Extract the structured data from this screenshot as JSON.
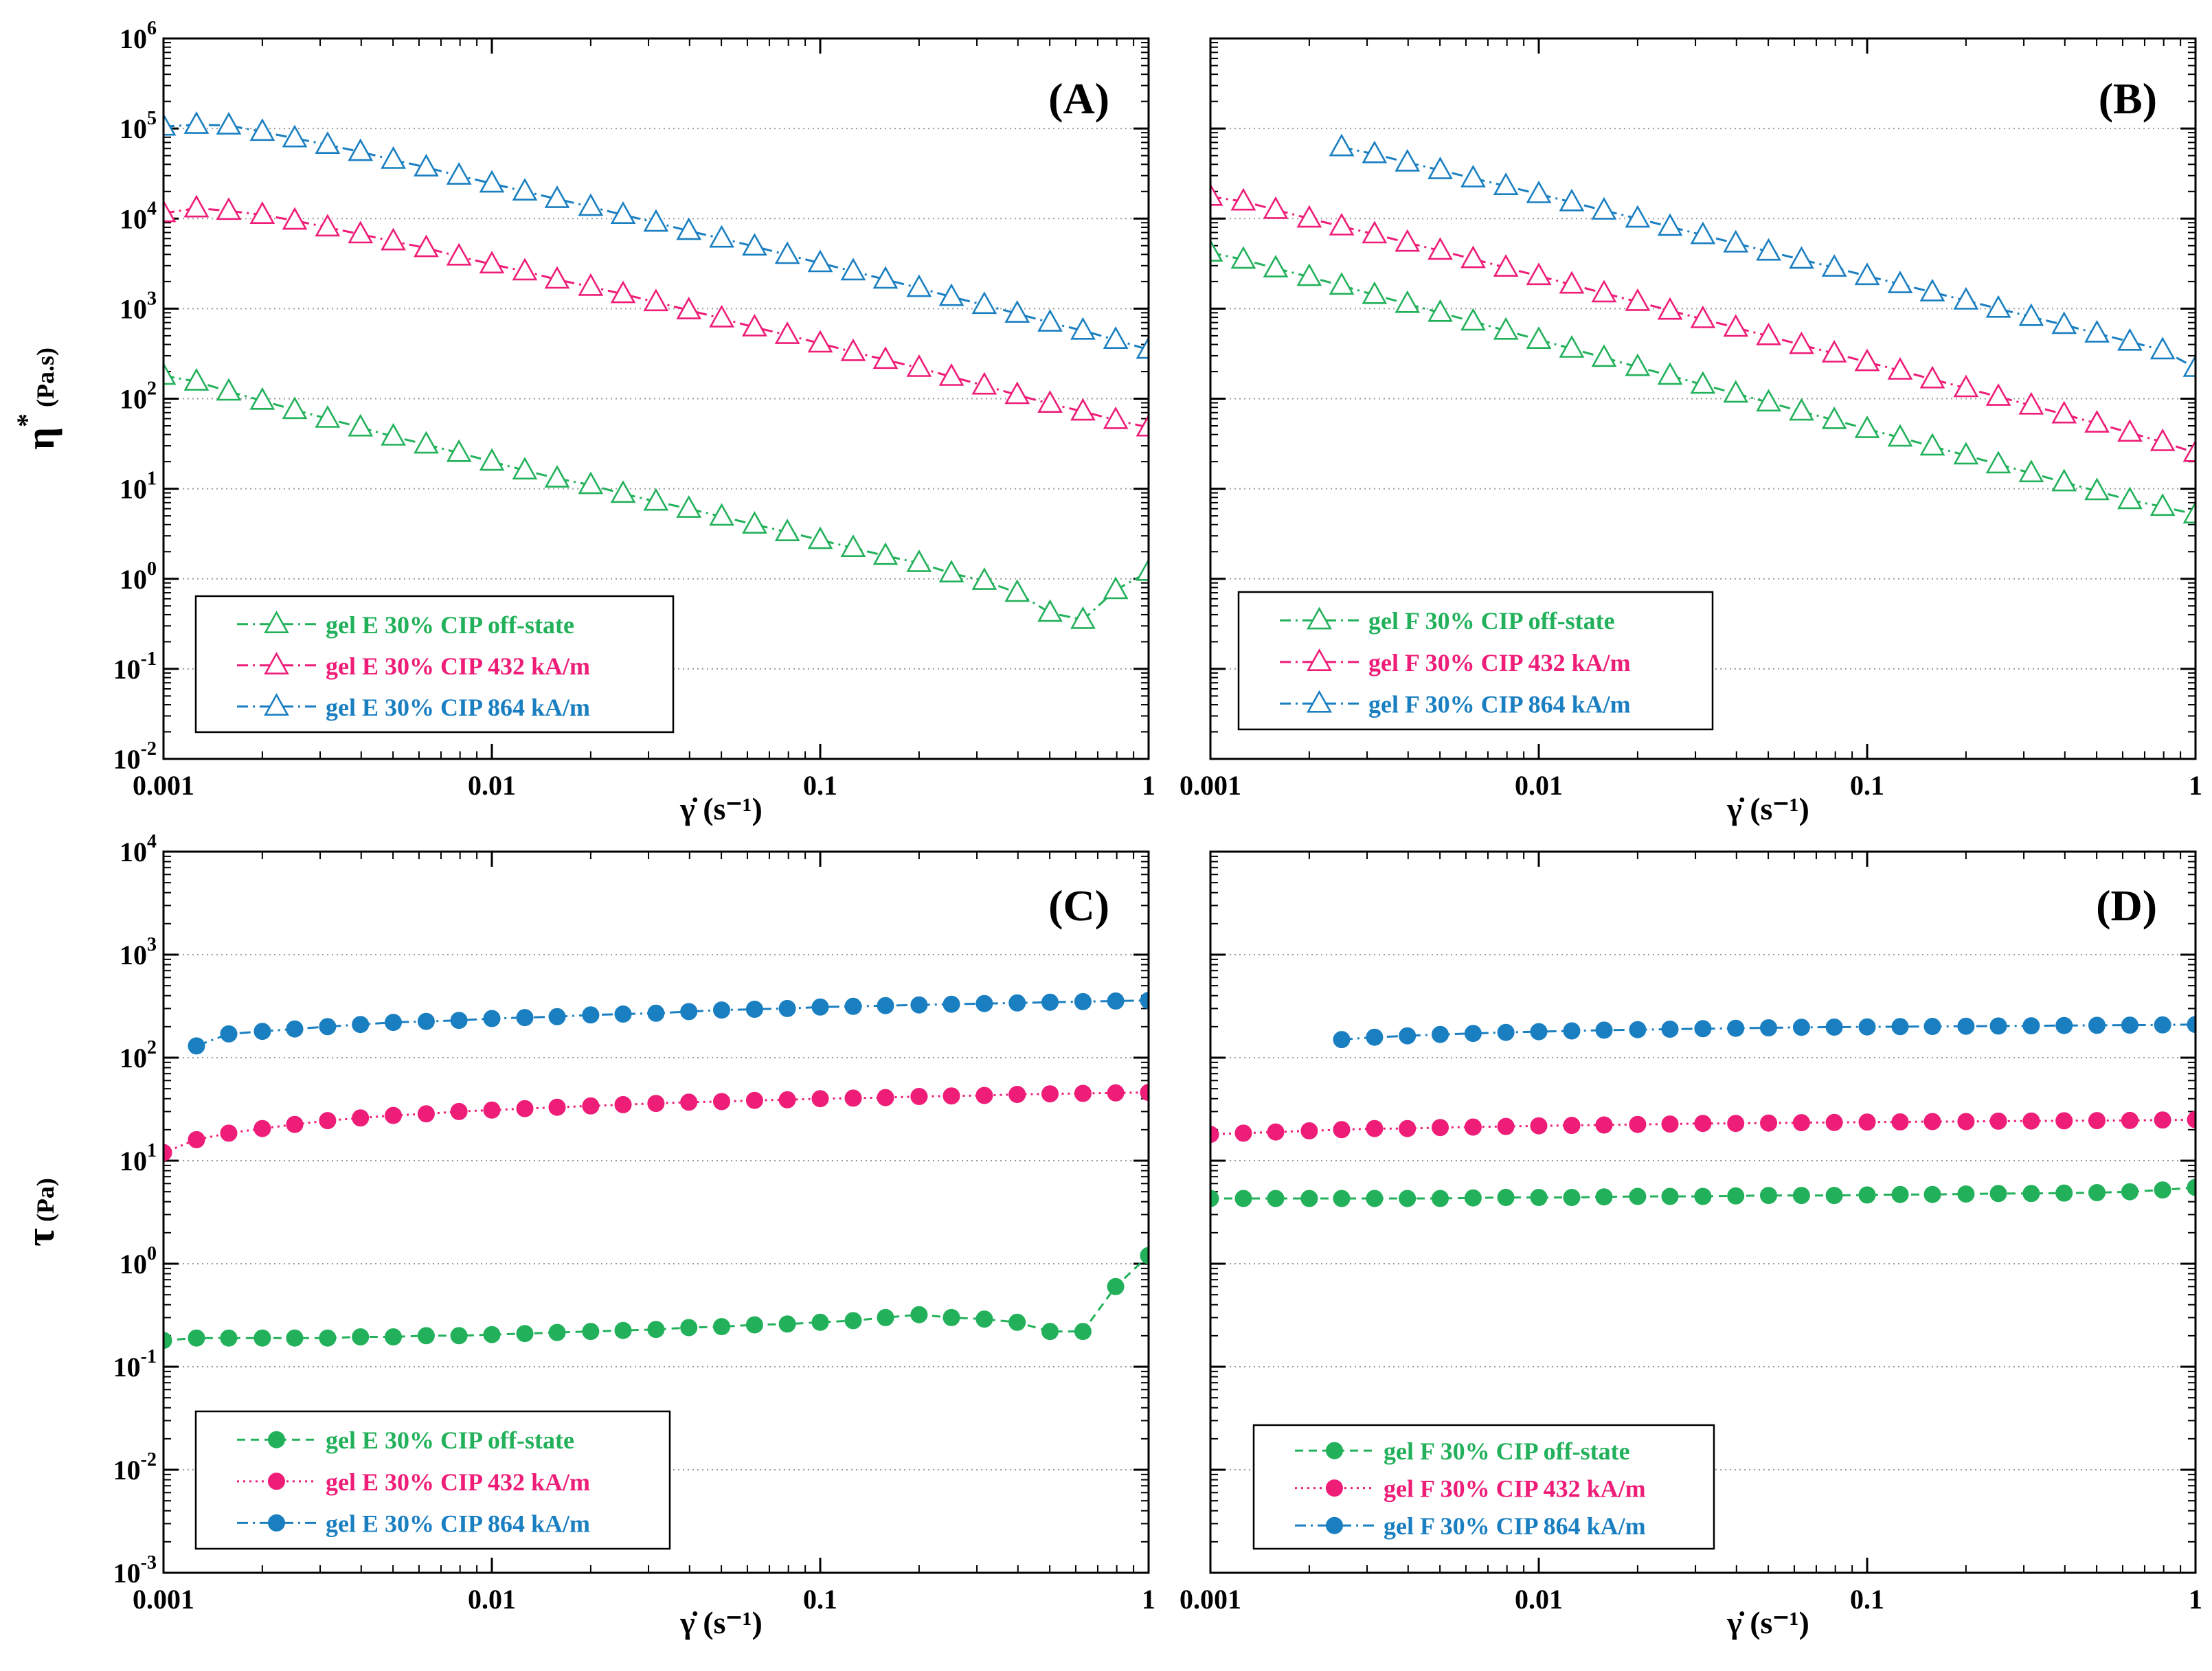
{
  "colors": {
    "off": "#22b15a",
    "m432": "#ee1d78",
    "m864": "#1a7fc1",
    "grid": "#9a9a9a",
    "axis": "#000000"
  },
  "chart_data": [
    {
      "panel": "(A)",
      "type": "line",
      "marker": "triangle-open",
      "x_log": true,
      "y_log": true,
      "xlim": [
        0.001,
        1
      ],
      "ylim": [
        0.01,
        1000000
      ],
      "xticks": [
        "0.001",
        "0.01",
        "0.1",
        "1"
      ],
      "ylabel": "η*",
      "ylabel_unit": "(Pa.s)",
      "xlabel": "γ̇ (s-1)",
      "show_xlabel": true,
      "show_ylabel": true,
      "show_yticks": true,
      "grid": "horizontal-dotted",
      "legend_position": "bottom-left",
      "series": [
        {
          "name": "gel E 30% CIP off-state",
          "color_key": "off",
          "dash": "dashdot",
          "x": [
            0.001,
            0.00126,
            0.00158,
            0.002,
            0.00251,
            0.00316,
            0.00398,
            0.00501,
            0.00631,
            0.00794,
            0.01,
            0.0126,
            0.0158,
            0.02,
            0.0251,
            0.0316,
            0.0398,
            0.0501,
            0.0631,
            0.0794,
            0.1,
            0.126,
            0.158,
            0.2,
            0.251,
            0.316,
            0.398,
            0.501,
            0.631,
            0.794,
            1
          ],
          "y": [
            180,
            155,
            120,
            95,
            75,
            60,
            48,
            38,
            31,
            25,
            20,
            16,
            13,
            11,
            8.8,
            7.2,
            6,
            4.9,
            4,
            3.3,
            2.7,
            2.2,
            1.8,
            1.5,
            1.15,
            0.95,
            0.7,
            0.42,
            0.35,
            0.75,
            1.2
          ]
        },
        {
          "name": "gel E 30% CIP 432 kA/m",
          "color_key": "m432",
          "dash": "dashdot",
          "x": [
            0.001,
            0.00126,
            0.00158,
            0.002,
            0.00251,
            0.00316,
            0.00398,
            0.00501,
            0.00631,
            0.00794,
            0.01,
            0.0126,
            0.0158,
            0.02,
            0.0251,
            0.0316,
            0.0398,
            0.0501,
            0.0631,
            0.0794,
            0.1,
            0.126,
            0.158,
            0.2,
            0.251,
            0.316,
            0.398,
            0.501,
            0.631,
            0.794,
            1
          ],
          "y": [
            11500,
            13000,
            12200,
            11000,
            9500,
            8000,
            6700,
            5600,
            4700,
            3800,
            3100,
            2600,
            2100,
            1750,
            1450,
            1180,
            960,
            780,
            620,
            510,
            410,
            330,
            270,
            220,
            175,
            140,
            110,
            88,
            72,
            58,
            48
          ]
        },
        {
          "name": "gel E 30% CIP 864 kA/m",
          "color_key": "m864",
          "dash": "dashdot",
          "x": [
            0.001,
            0.00126,
            0.00158,
            0.002,
            0.00251,
            0.00316,
            0.00398,
            0.00501,
            0.00631,
            0.00794,
            0.01,
            0.0126,
            0.0158,
            0.02,
            0.0251,
            0.0316,
            0.0398,
            0.0501,
            0.0631,
            0.0794,
            0.1,
            0.126,
            0.158,
            0.2,
            0.251,
            0.316,
            0.398,
            0.501,
            0.631,
            0.794,
            1
          ],
          "y": [
            105000,
            110000,
            108000,
            92000,
            78000,
            66000,
            55000,
            45000,
            37000,
            30000,
            24500,
            20000,
            16500,
            13500,
            11000,
            9000,
            7300,
            6000,
            4900,
            3950,
            3200,
            2600,
            2100,
            1700,
            1350,
            1100,
            880,
            700,
            570,
            450,
            350
          ]
        }
      ]
    },
    {
      "panel": "(B)",
      "type": "line",
      "marker": "triangle-open",
      "x_log": true,
      "y_log": true,
      "xlim": [
        0.001,
        1
      ],
      "ylim": [
        0.01,
        1000000
      ],
      "xticks": [
        "0.001",
        "0.01",
        "0.1",
        "1"
      ],
      "xlabel": "γ̇ (s-1)",
      "show_xlabel": true,
      "show_ylabel": false,
      "show_yticks": false,
      "grid": "horizontal-dotted",
      "legend_position": "bottom-left",
      "series": [
        {
          "name": "gel F 30% CIP off-state",
          "color_key": "off",
          "dash": "dashdot",
          "x": [
            0.001,
            0.00126,
            0.00158,
            0.002,
            0.00251,
            0.00316,
            0.00398,
            0.00501,
            0.00631,
            0.00794,
            0.01,
            0.0126,
            0.0158,
            0.02,
            0.0251,
            0.0316,
            0.0398,
            0.0501,
            0.0631,
            0.0794,
            0.1,
            0.126,
            0.158,
            0.2,
            0.251,
            0.316,
            0.398,
            0.501,
            0.631,
            0.794,
            1
          ],
          "y": [
            4200,
            3500,
            2800,
            2250,
            1800,
            1420,
            1130,
            900,
            720,
            570,
            450,
            360,
            285,
            225,
            180,
            143,
            114,
            91,
            72,
            58,
            46,
            37,
            29.5,
            23.5,
            18.7,
            14.9,
            11.8,
            9.4,
            7.5,
            6.3,
            5.2
          ]
        },
        {
          "name": "gel F 30% CIP 432 kA/m",
          "color_key": "m432",
          "dash": "dashdot",
          "x": [
            0.001,
            0.00126,
            0.00158,
            0.002,
            0.00251,
            0.00316,
            0.00398,
            0.00501,
            0.00631,
            0.00794,
            0.01,
            0.0126,
            0.0158,
            0.02,
            0.0251,
            0.0316,
            0.0398,
            0.0501,
            0.0631,
            0.0794,
            0.1,
            0.126,
            0.158,
            0.2,
            0.251,
            0.316,
            0.398,
            0.501,
            0.631,
            0.794,
            1
          ],
          "y": [
            17500,
            15500,
            12500,
            10000,
            8200,
            6700,
            5400,
            4400,
            3550,
            2850,
            2300,
            1850,
            1480,
            1190,
            950,
            765,
            615,
            495,
            395,
            318,
            255,
            205,
            164,
            131,
            105,
            84,
            67,
            53,
            42,
            33,
            25
          ]
        },
        {
          "name": "gel F 30% CIP 864 kA/m",
          "color_key": "m864",
          "dash": "dashdot",
          "x": [
            0.00251,
            0.00316,
            0.00398,
            0.00501,
            0.00631,
            0.00794,
            0.01,
            0.0126,
            0.0158,
            0.02,
            0.0251,
            0.0316,
            0.0398,
            0.0501,
            0.0631,
            0.0794,
            0.1,
            0.126,
            0.158,
            0.2,
            0.251,
            0.316,
            0.398,
            0.501,
            0.631,
            0.794,
            1
          ],
          "y": [
            62000,
            52000,
            42000,
            34500,
            28000,
            23000,
            18700,
            15200,
            12300,
            10000,
            8100,
            6550,
            5300,
            4300,
            3500,
            2850,
            2300,
            1870,
            1520,
            1230,
            1000,
            810,
            660,
            530,
            430,
            345,
            220
          ]
        }
      ]
    },
    {
      "panel": "(C)",
      "type": "line",
      "marker": "circle-filled",
      "x_log": true,
      "y_log": true,
      "xlim": [
        0.001,
        1
      ],
      "ylim": [
        0.001,
        10000
      ],
      "xticks": [
        "0.001",
        "0.01",
        "0.1",
        "1"
      ],
      "ylabel": "τ",
      "ylabel_unit": "(Pa)",
      "xlabel": "γ̇ (s-1)",
      "show_xlabel": true,
      "show_ylabel": true,
      "show_yticks": true,
      "grid": "horizontal-dotted",
      "legend_position": "bottom-left",
      "series": [
        {
          "name": "gel E 30% CIP off-state",
          "color_key": "off",
          "dash": "dash",
          "x": [
            0.001,
            0.00126,
            0.00158,
            0.002,
            0.00251,
            0.00316,
            0.00398,
            0.00501,
            0.00631,
            0.00794,
            0.01,
            0.0126,
            0.0158,
            0.02,
            0.0251,
            0.0316,
            0.0398,
            0.0501,
            0.0631,
            0.0794,
            0.1,
            0.126,
            0.158,
            0.2,
            0.251,
            0.316,
            0.398,
            0.501,
            0.631,
            0.794,
            1
          ],
          "y": [
            0.18,
            0.19,
            0.19,
            0.19,
            0.19,
            0.19,
            0.195,
            0.195,
            0.2,
            0.2,
            0.205,
            0.21,
            0.215,
            0.22,
            0.225,
            0.23,
            0.24,
            0.245,
            0.255,
            0.26,
            0.27,
            0.28,
            0.3,
            0.32,
            0.3,
            0.29,
            0.27,
            0.22,
            0.22,
            0.6,
            1.2
          ]
        },
        {
          "name": "gel E 30% CIP 432 kA/m",
          "color_key": "m432",
          "dash": "dot",
          "x": [
            0.001,
            0.00126,
            0.00158,
            0.002,
            0.00251,
            0.00316,
            0.00398,
            0.00501,
            0.00631,
            0.00794,
            0.01,
            0.0126,
            0.0158,
            0.02,
            0.0251,
            0.0316,
            0.0398,
            0.0501,
            0.0631,
            0.0794,
            0.1,
            0.126,
            0.158,
            0.2,
            0.251,
            0.316,
            0.398,
            0.501,
            0.631,
            0.794,
            1
          ],
          "y": [
            12,
            16,
            18.5,
            20.5,
            22.5,
            24.5,
            26,
            27.5,
            28.5,
            30,
            31,
            32,
            33,
            34,
            35,
            36,
            37,
            37.5,
            38.5,
            39,
            40,
            40.5,
            41,
            42,
            42.5,
            43,
            44,
            44.5,
            45,
            45.5,
            46
          ]
        },
        {
          "name": "gel E 30% CIP 864 kA/m",
          "color_key": "m864",
          "dash": "dashdot",
          "x": [
            0.00126,
            0.00158,
            0.002,
            0.00251,
            0.00316,
            0.00398,
            0.00501,
            0.00631,
            0.00794,
            0.01,
            0.0126,
            0.0158,
            0.02,
            0.0251,
            0.0316,
            0.0398,
            0.0501,
            0.0631,
            0.0794,
            0.1,
            0.126,
            0.158,
            0.2,
            0.251,
            0.316,
            0.398,
            0.501,
            0.631,
            0.794,
            1
          ],
          "y": [
            130,
            170,
            180,
            190,
            200,
            210,
            220,
            225,
            230,
            240,
            245,
            250,
            260,
            265,
            270,
            280,
            290,
            295,
            300,
            310,
            315,
            320,
            325,
            330,
            335,
            340,
            345,
            350,
            355,
            360
          ]
        }
      ]
    },
    {
      "panel": "(D)",
      "type": "line",
      "marker": "circle-filled",
      "x_log": true,
      "y_log": true,
      "xlim": [
        0.001,
        1
      ],
      "ylim": [
        0.001,
        10000
      ],
      "xticks": [
        "0.001",
        "0.01",
        "0.1",
        "1"
      ],
      "xlabel": "γ̇ (s-1)",
      "show_xlabel": true,
      "show_ylabel": false,
      "show_yticks": false,
      "grid": "horizontal-dotted",
      "legend_position": "bottom-left",
      "series": [
        {
          "name": "gel F 30% CIP off-state",
          "color_key": "off",
          "dash": "dash",
          "x": [
            0.001,
            0.00126,
            0.00158,
            0.002,
            0.00251,
            0.00316,
            0.00398,
            0.00501,
            0.00631,
            0.00794,
            0.01,
            0.0126,
            0.0158,
            0.02,
            0.0251,
            0.0316,
            0.0398,
            0.0501,
            0.0631,
            0.0794,
            0.1,
            0.126,
            0.158,
            0.2,
            0.251,
            0.316,
            0.398,
            0.501,
            0.631,
            0.794,
            1
          ],
          "y": [
            4.3,
            4.3,
            4.3,
            4.3,
            4.3,
            4.3,
            4.3,
            4.3,
            4.35,
            4.4,
            4.4,
            4.4,
            4.45,
            4.5,
            4.5,
            4.5,
            4.55,
            4.6,
            4.6,
            4.6,
            4.65,
            4.7,
            4.7,
            4.75,
            4.8,
            4.8,
            4.85,
            4.9,
            5,
            5.2,
            5.5
          ]
        },
        {
          "name": "gel F 30% CIP 432 kA/m",
          "color_key": "m432",
          "dash": "dot",
          "x": [
            0.001,
            0.00126,
            0.00158,
            0.002,
            0.00251,
            0.00316,
            0.00398,
            0.00501,
            0.00631,
            0.00794,
            0.01,
            0.0126,
            0.0158,
            0.02,
            0.0251,
            0.0316,
            0.0398,
            0.0501,
            0.0631,
            0.0794,
            0.1,
            0.126,
            0.158,
            0.2,
            0.251,
            0.316,
            0.398,
            0.501,
            0.631,
            0.794,
            1
          ],
          "y": [
            18,
            18.5,
            19,
            19.5,
            20,
            20.5,
            20.5,
            21,
            21.2,
            21.5,
            21.8,
            22,
            22.2,
            22.5,
            22.7,
            23,
            23,
            23.2,
            23.4,
            23.5,
            23.7,
            23.8,
            24,
            24,
            24.2,
            24.3,
            24.4,
            24.5,
            24.6,
            24.8,
            25
          ]
        },
        {
          "name": "gel F 30% CIP 864 kA/m",
          "color_key": "m864",
          "dash": "dashdot",
          "x": [
            0.00251,
            0.00316,
            0.00398,
            0.00501,
            0.00631,
            0.00794,
            0.01,
            0.0126,
            0.0158,
            0.02,
            0.0251,
            0.0316,
            0.0398,
            0.0501,
            0.0631,
            0.0794,
            0.1,
            0.126,
            0.158,
            0.2,
            0.251,
            0.316,
            0.398,
            0.501,
            0.631,
            0.794,
            1
          ],
          "y": [
            150,
            158,
            163,
            168,
            172,
            176,
            179,
            182,
            185,
            187,
            189,
            191,
            193,
            195,
            197,
            198,
            199,
            200,
            201,
            202,
            203,
            204,
            205,
            206,
            207,
            208,
            210
          ]
        }
      ]
    }
  ]
}
